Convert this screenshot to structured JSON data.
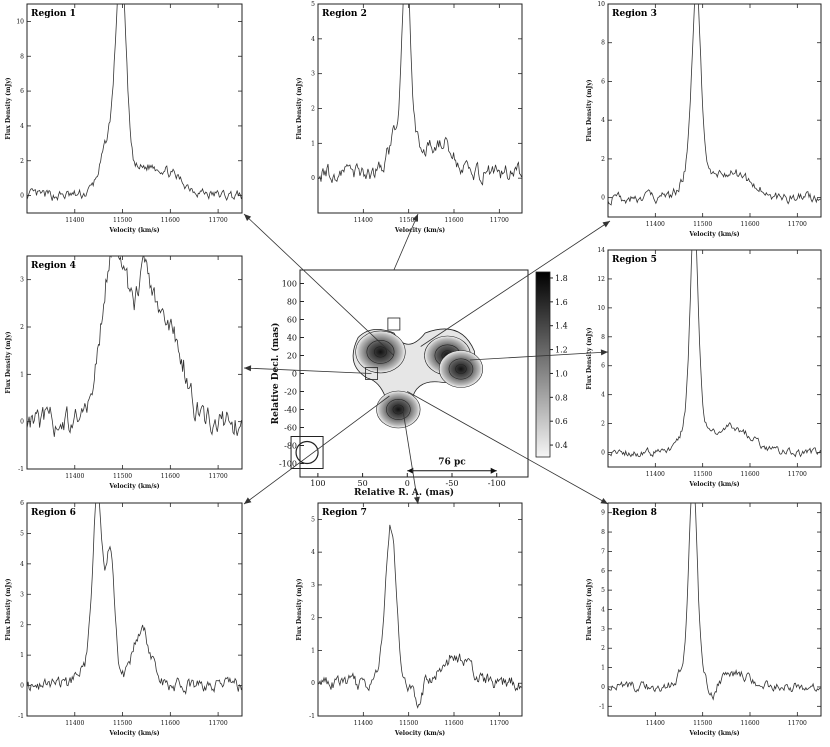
{
  "chart_data": [
    {
      "type": "line",
      "title": "Region 1",
      "xlabel": "Velocity (km/s)",
      "ylabel": "Flux Density (mJy)",
      "xlim": [
        11300,
        11750
      ],
      "ylim": [
        -1,
        11
      ],
      "xticks": [
        "11400",
        "11500",
        "11600",
        "11700"
      ],
      "yticks": [
        "0",
        "2",
        "4",
        "6",
        "8",
        "10"
      ],
      "features": {
        "baseline": 0.0,
        "noise": 0.35,
        "peaks": [
          {
            "v": 11497,
            "amp": 10.2,
            "w": 10
          },
          {
            "v": 11480,
            "amp": 3.6,
            "w": 22
          },
          {
            "v": 11550,
            "amp": 1.3,
            "w": 40
          },
          {
            "v": 11600,
            "amp": 0.7,
            "w": 40
          }
        ]
      }
    },
    {
      "type": "line",
      "title": "Region 2",
      "xlabel": "Velocity (km/s)",
      "ylabel": "Flux Density (mJy)",
      "xlim": [
        11300,
        11750
      ],
      "ylim": [
        -1,
        5
      ],
      "xticks": [
        "11400",
        "11500",
        "11600",
        "11700"
      ],
      "yticks": [
        "0",
        "1",
        "2",
        "3",
        "4",
        "5"
      ],
      "features": {
        "baseline": 0.15,
        "noise": 0.28,
        "peaks": [
          {
            "v": 11495,
            "amp": 4.7,
            "w": 8
          },
          {
            "v": 11490,
            "amp": 1.6,
            "w": 25
          },
          {
            "v": 11570,
            "amp": 0.9,
            "w": 25
          }
        ]
      }
    },
    {
      "type": "line",
      "title": "Region 3",
      "xlabel": "Velocity (km/s)",
      "ylabel": "Flux Density (mJy)",
      "xlim": [
        11300,
        11750
      ],
      "ylim": [
        -1,
        10
      ],
      "xticks": [
        "11400",
        "11500",
        "11600",
        "11700"
      ],
      "yticks": [
        "0",
        "2",
        "4",
        "6",
        "8",
        "10"
      ],
      "features": {
        "baseline": 0.0,
        "noise": 0.3,
        "peaks": [
          {
            "v": 11487,
            "amp": 8.8,
            "w": 9
          },
          {
            "v": 11480,
            "amp": 1.8,
            "w": 20
          },
          {
            "v": 11560,
            "amp": 1.3,
            "w": 40
          }
        ]
      }
    },
    {
      "type": "line",
      "title": "Region 4",
      "xlabel": "Velocity (km/s)",
      "ylabel": "Flux Density (mJy)",
      "xlim": [
        11300,
        11750
      ],
      "ylim": [
        -1,
        3.5
      ],
      "xticks": [
        "11400",
        "11500",
        "11600",
        "11700"
      ],
      "yticks": [
        "-1",
        "0",
        "1",
        "2",
        "3"
      ],
      "features": {
        "baseline": 0.0,
        "noise": 0.32,
        "peaks": [
          {
            "v": 11465,
            "amp": 2.2,
            "w": 18
          },
          {
            "v": 11495,
            "amp": 3.1,
            "w": 18
          },
          {
            "v": 11545,
            "amp": 2.8,
            "w": 20
          },
          {
            "v": 11590,
            "amp": 1.5,
            "w": 25
          },
          {
            "v": 11620,
            "amp": 0.8,
            "w": 20
          }
        ]
      }
    },
    {
      "type": "line",
      "title": "Region 5",
      "xlabel": "Velocity (km/s)",
      "ylabel": "Flux Density (mJy)",
      "xlim": [
        11300,
        11750
      ],
      "ylim": [
        -1,
        14
      ],
      "xticks": [
        "11400",
        "11500",
        "11600",
        "11700"
      ],
      "yticks": [
        "0",
        "2",
        "4",
        "6",
        "8",
        "10",
        "12",
        "14"
      ],
      "features": {
        "baseline": 0.0,
        "noise": 0.3,
        "peaks": [
          {
            "v": 11482,
            "amp": 13.0,
            "w": 8
          },
          {
            "v": 11480,
            "amp": 3.0,
            "w": 20
          },
          {
            "v": 11560,
            "amp": 1.8,
            "w": 40
          }
        ]
      }
    },
    {
      "type": "line",
      "title": "Region 6",
      "xlabel": "Velocity (km/s)",
      "ylabel": "Flux Density (mJy)",
      "xlim": [
        11300,
        11750
      ],
      "ylim": [
        -1,
        6
      ],
      "xticks": [
        "11400",
        "11500",
        "11600",
        "11700"
      ],
      "yticks": [
        "-1",
        "0",
        "1",
        "2",
        "3",
        "4",
        "5",
        "6"
      ],
      "features": {
        "baseline": 0.0,
        "noise": 0.25,
        "peaks": [
          {
            "v": 11448,
            "amp": 5.6,
            "w": 10
          },
          {
            "v": 11475,
            "amp": 3.9,
            "w": 8
          },
          {
            "v": 11540,
            "amp": 1.8,
            "w": 18
          },
          {
            "v": 11450,
            "amp": 0.9,
            "w": 30
          }
        ]
      }
    },
    {
      "type": "line",
      "title": "Region 7",
      "xlabel": "Velocity (km/s)",
      "ylabel": "Flux Density (mJy)",
      "xlim": [
        11300,
        11750
      ],
      "ylim": [
        -1,
        5.5
      ],
      "xticks": [
        "11400",
        "11500",
        "11600",
        "11700"
      ],
      "yticks": [
        "-1",
        "0",
        "1",
        "2",
        "3",
        "4",
        "5"
      ],
      "features": {
        "baseline": 0.0,
        "noise": 0.25,
        "peaks": [
          {
            "v": 11460,
            "amp": 4.9,
            "w": 12
          },
          {
            "v": 11520,
            "amp": -0.8,
            "w": 8
          },
          {
            "v": 11600,
            "amp": 0.8,
            "w": 30
          }
        ]
      }
    },
    {
      "type": "line",
      "title": "Region 8",
      "xlabel": "Velocity (km/s)",
      "ylabel": "Flux Density (mJy)",
      "xlim": [
        11300,
        11750
      ],
      "ylim": [
        -1.5,
        9.5
      ],
      "xticks": [
        "11400",
        "11500",
        "11600",
        "11700"
      ],
      "yticks": [
        "-1",
        "0",
        "1",
        "2",
        "3",
        "4",
        "5",
        "6",
        "7",
        "8",
        "9"
      ],
      "features": {
        "baseline": 0.0,
        "noise": 0.3,
        "peaks": [
          {
            "v": 11480,
            "amp": 8.9,
            "w": 8
          },
          {
            "v": 11475,
            "amp": 2.0,
            "w": 18
          },
          {
            "v": 11520,
            "amp": -0.8,
            "w": 8
          },
          {
            "v": 11570,
            "amp": 0.7,
            "w": 30
          }
        ]
      }
    },
    {
      "type": "heatmap",
      "xlabel": "Relative R. A. (mas)",
      "ylabel": "Relative Decl. (mas)",
      "xlim": [
        120,
        -135
      ],
      "ylim": [
        -115,
        115
      ],
      "xticks": [
        "100",
        "50",
        "0",
        "-50",
        "-100"
      ],
      "yticks": [
        "100",
        "80",
        "60",
        "40",
        "20",
        "0",
        "-20",
        "-40",
        "-60",
        "-80",
        "-100"
      ],
      "colorbar": {
        "min": 0.3,
        "max": 1.85,
        "ticks": [
          "1.8",
          "1.6",
          "1.4",
          "1.2",
          "1.0",
          "0.8",
          "0.6",
          "0.4"
        ]
      },
      "scalebar": "76 pc",
      "components": [
        {
          "ra": 30,
          "dec": 24,
          "peak": 1.8
        },
        {
          "ra": -45,
          "dec": 20,
          "peak": 1.5
        },
        {
          "ra": -60,
          "dec": 5,
          "peak": 1.3
        },
        {
          "ra": 10,
          "dec": -40,
          "peak": 1.3
        }
      ]
    }
  ]
}
